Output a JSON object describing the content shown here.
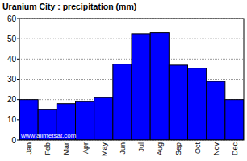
{
  "chart_data": {
    "type": "bar",
    "title": "Uranium City : precipitation (mm)",
    "categories": [
      "Jan",
      "Feb",
      "Mar",
      "Apr",
      "May",
      "Jun",
      "Jul",
      "Aug",
      "Sep",
      "Oct",
      "Nov",
      "Dec"
    ],
    "values": [
      20,
      15,
      18,
      19,
      21,
      37.5,
      52.5,
      53,
      37,
      35.5,
      29,
      20
    ],
    "color": "#0000ff",
    "ylim": [
      0,
      60
    ],
    "yticks": [
      0,
      10,
      20,
      30,
      40,
      50,
      60
    ],
    "grid": true,
    "annotations": [
      "www.allmetsat.com"
    ]
  }
}
